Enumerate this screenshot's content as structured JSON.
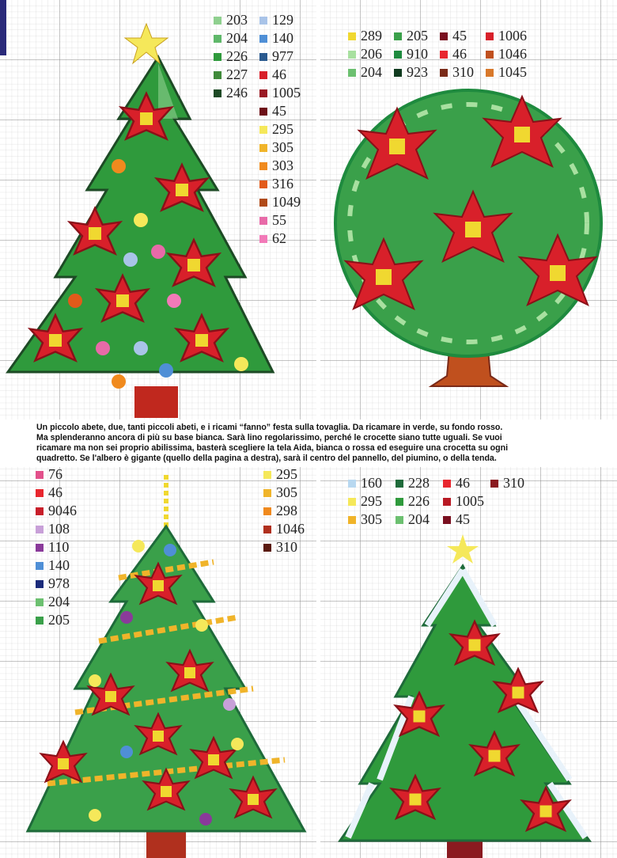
{
  "panels": [
    {
      "legend_columns": [
        [
          {
            "code": "203",
            "color": "#8fd08f"
          },
          {
            "code": "204",
            "color": "#5fb86a"
          },
          {
            "code": "226",
            "color": "#2f9a3c"
          },
          {
            "code": "227",
            "color": "#3f8a3a"
          },
          {
            "code": "246",
            "color": "#1d4a25"
          }
        ],
        [
          {
            "code": "129",
            "color": "#a9c4e8"
          },
          {
            "code": "140",
            "color": "#4f8fd6"
          },
          {
            "code": "977",
            "color": "#2a5a8f"
          },
          {
            "code": "46",
            "color": "#d8202a"
          },
          {
            "code": "1005",
            "color": "#9a1a24"
          },
          {
            "code": "45",
            "color": "#6e1018"
          },
          {
            "code": "295",
            "color": "#f5e85a"
          },
          {
            "code": "305",
            "color": "#f0b42a"
          },
          {
            "code": "303",
            "color": "#f08a1e"
          },
          {
            "code": "316",
            "color": "#e25a1a"
          },
          {
            "code": "1049",
            "color": "#b04a18"
          },
          {
            "code": "55",
            "color": "#e86aa8"
          },
          {
            "code": "62",
            "color": "#f27ab8"
          }
        ]
      ]
    },
    {
      "legend_rows": [
        [
          {
            "code": "289",
            "color": "#f0d830"
          },
          {
            "code": "205",
            "color": "#3aa04a"
          },
          {
            "code": "45",
            "color": "#7a1020"
          },
          {
            "code": "1006",
            "color": "#d8202a"
          }
        ],
        [
          {
            "code": "206",
            "color": "#a8e0a0"
          },
          {
            "code": "910",
            "color": "#1e8a3e"
          },
          {
            "code": "46",
            "color": "#e8262e"
          },
          {
            "code": "1046",
            "color": "#c0501e"
          }
        ],
        [
          {
            "code": "204",
            "color": "#6cc070"
          },
          {
            "code": "923",
            "color": "#0f3a1e"
          },
          {
            "code": "310",
            "color": "#7a2a18"
          },
          {
            "code": "1045",
            "color": "#d8782a"
          }
        ]
      ]
    },
    {
      "legend_columns": [
        [
          {
            "code": "76",
            "color": "#e2508a"
          },
          {
            "code": "46",
            "color": "#e8262e"
          },
          {
            "code": "9046",
            "color": "#c81e2a"
          },
          {
            "code": "108",
            "color": "#c8a0d8"
          },
          {
            "code": "110",
            "color": "#8a3a9a"
          },
          {
            "code": "140",
            "color": "#4f8fd6"
          },
          {
            "code": "978",
            "color": "#1a2a7a"
          },
          {
            "code": "204",
            "color": "#6cc070"
          },
          {
            "code": "205",
            "color": "#3aa04a"
          }
        ],
        [
          {
            "code": "295",
            "color": "#f5e85a"
          },
          {
            "code": "305",
            "color": "#f0b42a"
          },
          {
            "code": "298",
            "color": "#f08a1e"
          },
          {
            "code": "1046",
            "color": "#b0301e"
          },
          {
            "code": "310",
            "color": "#5a1a10"
          }
        ]
      ]
    },
    {
      "legend_rows": [
        [
          {
            "code": "160",
            "color": "#b8d8f0"
          },
          {
            "code": "228",
            "color": "#1e6a3a"
          },
          {
            "code": "46",
            "color": "#e8262e"
          },
          {
            "code": "310",
            "color": "#8a1a20"
          }
        ],
        [
          {
            "code": "295",
            "color": "#f5e85a"
          },
          {
            "code": "226",
            "color": "#2f9a3c"
          },
          {
            "code": "1005",
            "color": "#b81a24"
          }
        ],
        [
          {
            "code": "305",
            "color": "#f0b42a"
          },
          {
            "code": "204",
            "color": "#6cc070"
          },
          {
            "code": "45",
            "color": "#7a1020"
          }
        ]
      ]
    }
  ],
  "caption": [
    "Un piccolo abete, due, tanti piccoli abeti, e i ricami “fanno” festa sulla tovaglia. Da ricamare in verde, su fondo rosso.",
    "Ma splenderanno ancora di più su base bianca. Sarà lino regolarissimo, perché le crocette siano tutte uguali. Se vuoi",
    "ricamare ma non sei proprio abilissima, basterà scegliere la tela Aida, bianca o rossa ed eseguire una crocetta su ogni",
    "quadretto. Se l'albero è gigante (quello della pagina a destra), sarà il centro del pannello, del piumino, o della tenda."
  ]
}
